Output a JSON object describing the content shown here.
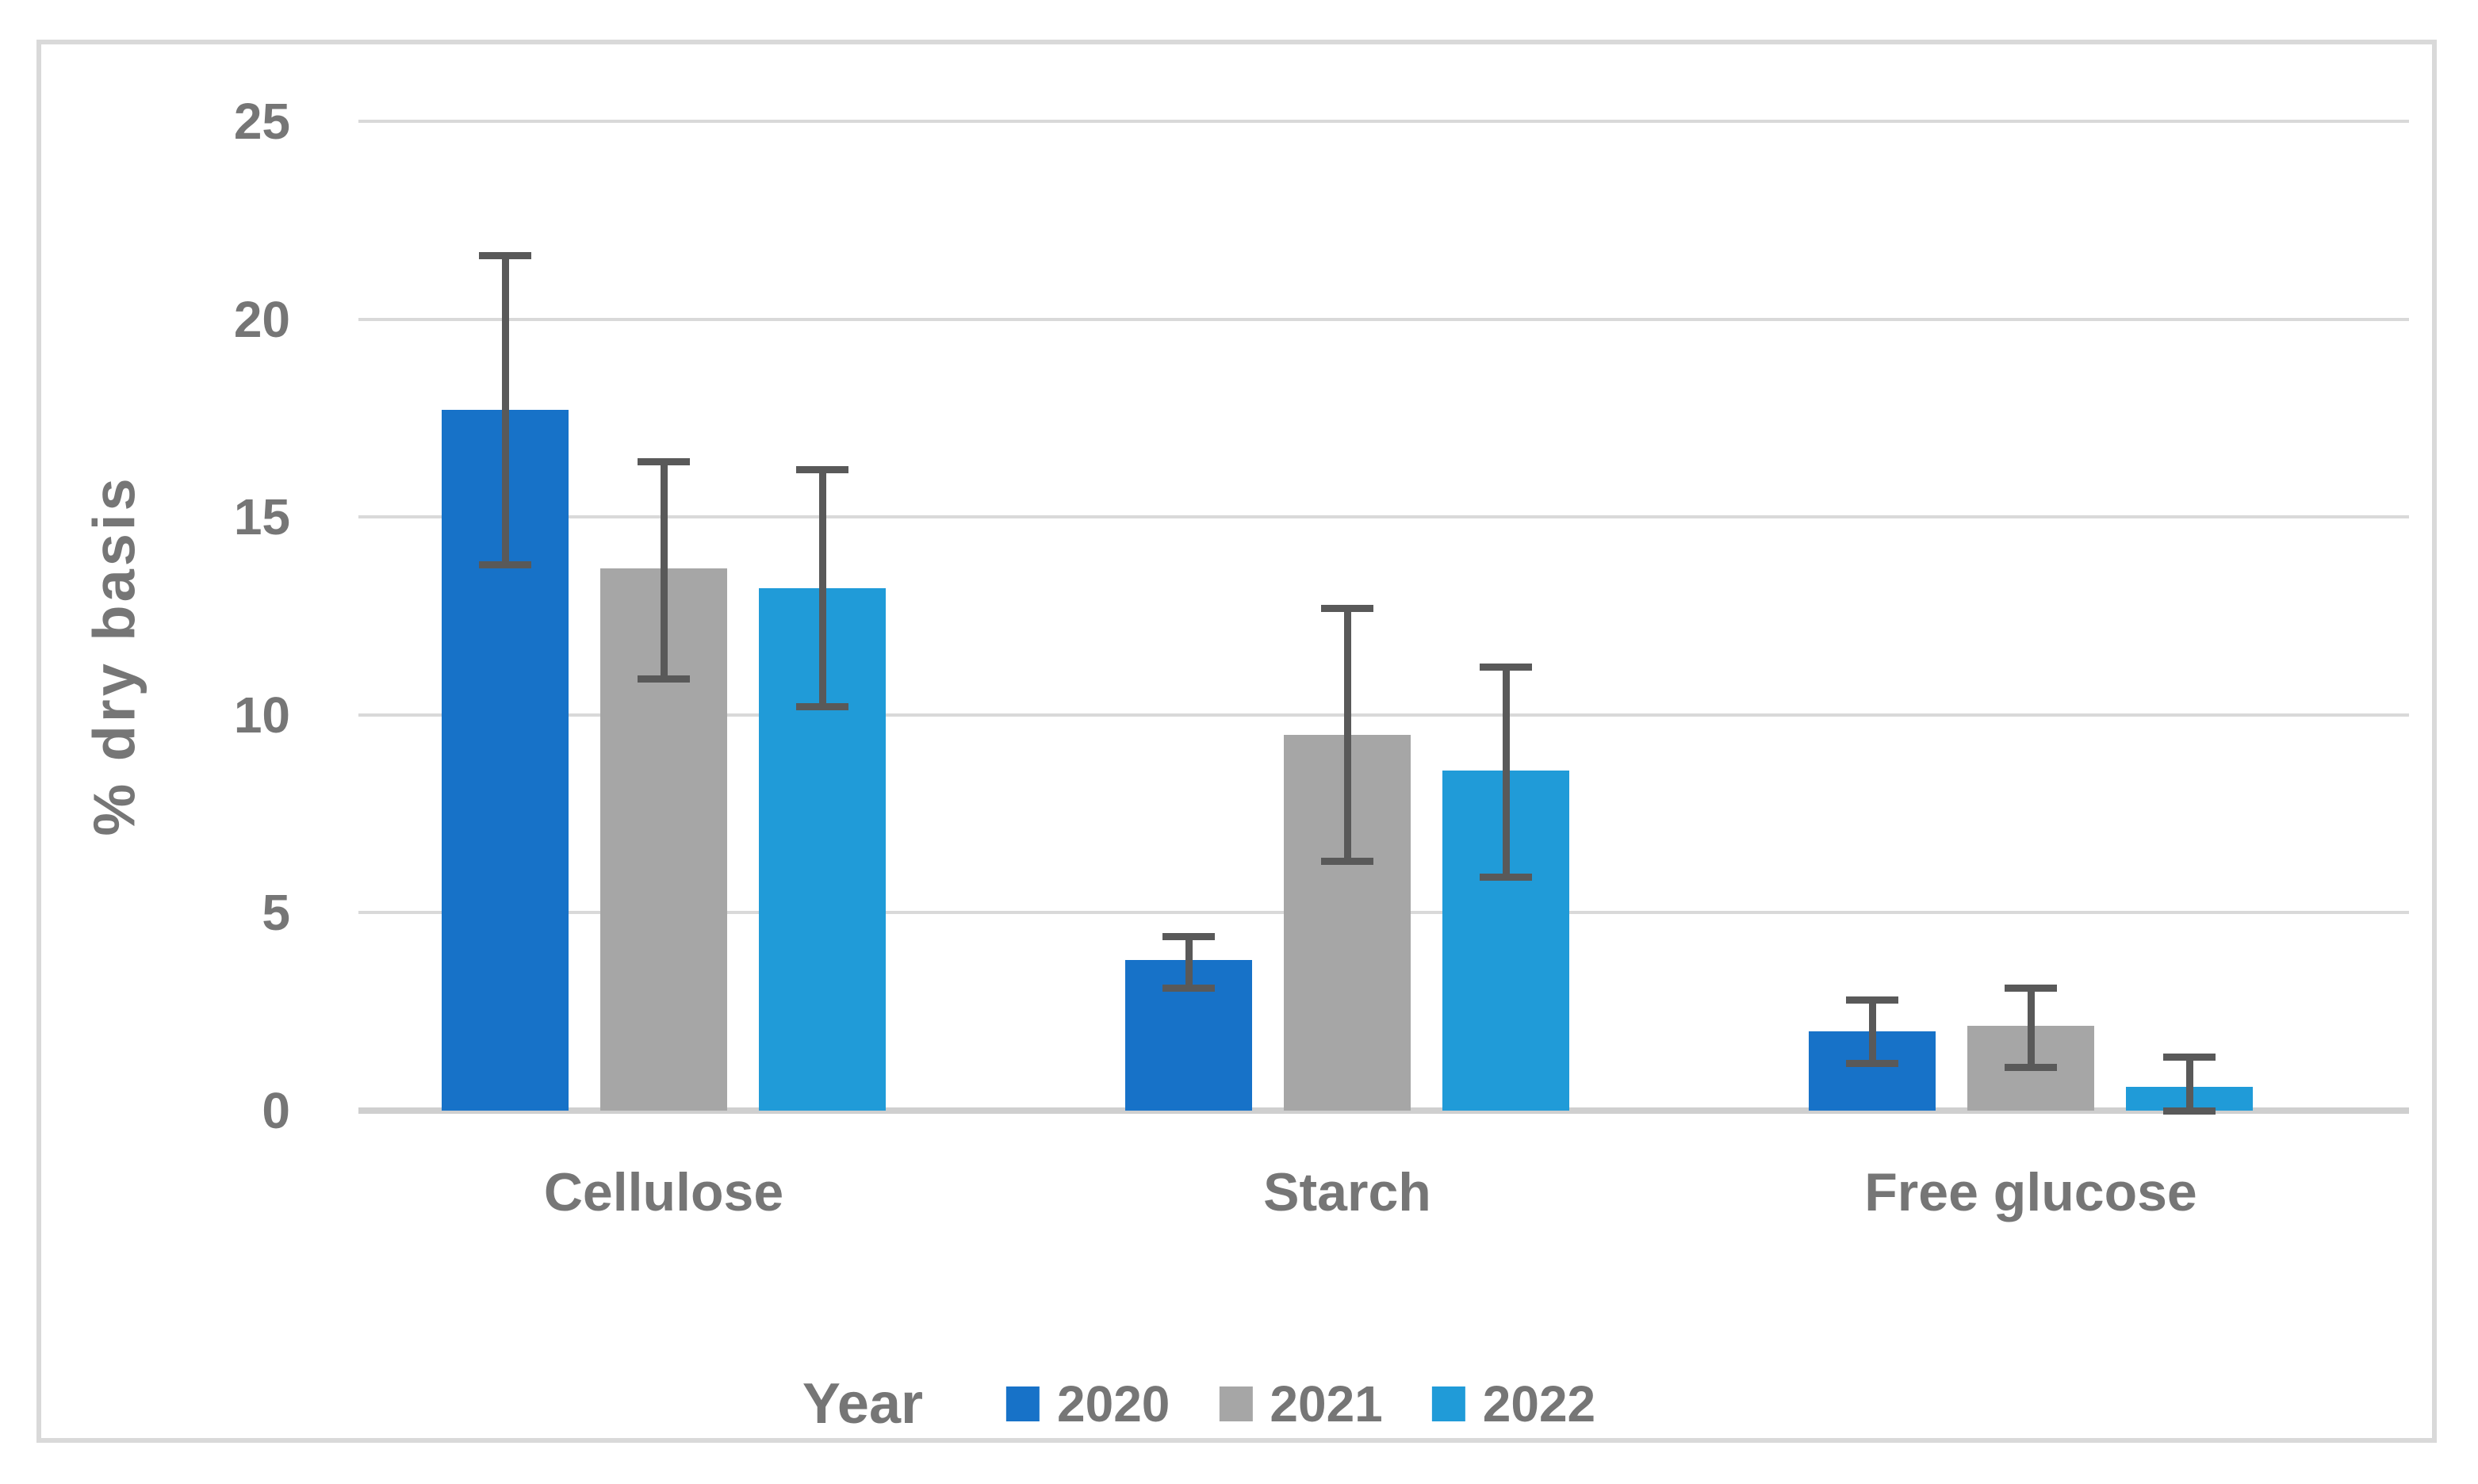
{
  "chart_data": {
    "type": "bar",
    "title": "",
    "ylabel": "% dry basis",
    "xlabel": "",
    "categories": [
      "Cellulose",
      "Starch",
      "Free glucose"
    ],
    "series": [
      {
        "name": "2020",
        "color": "#1772c8",
        "values": [
          17.7,
          3.8,
          2.0
        ],
        "error_plus": [
          3.9,
          0.6,
          0.8
        ],
        "error_minus": [
          3.9,
          0.7,
          0.8
        ]
      },
      {
        "name": "2021",
        "color": "#a6a6a6",
        "values": [
          13.7,
          9.5,
          2.15
        ],
        "error_plus": [
          2.7,
          3.2,
          0.95
        ],
        "error_minus": [
          2.8,
          3.2,
          1.05
        ]
      },
      {
        "name": "2022",
        "color": "#209bd8",
        "values": [
          13.2,
          8.6,
          0.6
        ],
        "error_plus": [
          3.0,
          2.6,
          0.75
        ],
        "error_minus": [
          3.0,
          2.7,
          0.6
        ]
      }
    ],
    "y_ticks": [
      25,
      20,
      15,
      10,
      5,
      0
    ],
    "ylim": [
      0,
      25
    ],
    "grid": true,
    "legend_title": "Year",
    "legend_position": "bottom",
    "error_bar_color": "#595959",
    "gridline_color": "#d9d9d9",
    "text_color": "#767676"
  }
}
